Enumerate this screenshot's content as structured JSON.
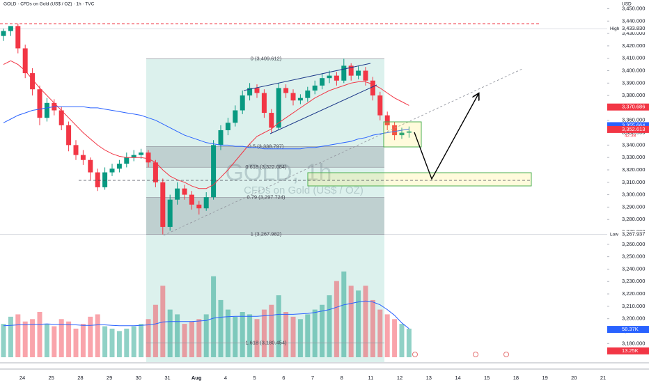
{
  "chart_data": {
    "type": "candlestick",
    "title": "GOLD · CFDs on Gold (US$ / OZ) · 1h · TVC",
    "watermark": "GOLD, 1h",
    "watermark_subtitle": "CFDs on Gold (US$ / OZ)",
    "currency": "USD",
    "up_color": "#089981",
    "down_color": "#f23645",
    "ylim": [
      3165,
      3457
    ],
    "yticks": [
      {
        "value": 3180,
        "label": "3,180.000"
      },
      {
        "value": 3190,
        "label": "3,190.000"
      },
      {
        "value": 3200,
        "label": "3,200.000"
      },
      {
        "value": 3210,
        "label": "3,210.000"
      },
      {
        "value": 3220,
        "label": "3,220.000"
      },
      {
        "value": 3230,
        "label": "3,230.000"
      },
      {
        "value": 3240,
        "label": "3,240.000"
      },
      {
        "value": 3250,
        "label": "3,250.000"
      },
      {
        "value": 3260,
        "label": "3,260.000"
      },
      {
        "value": 3270,
        "label": "3,270.000"
      },
      {
        "value": 3280,
        "label": "3,280.000"
      },
      {
        "value": 3290,
        "label": "3,290.000"
      },
      {
        "value": 3300,
        "label": "3,300.000"
      },
      {
        "value": 3310,
        "label": "3,310.000"
      },
      {
        "value": 3320,
        "label": "3,320.000"
      },
      {
        "value": 3330,
        "label": "3,330.000"
      },
      {
        "value": 3340,
        "label": "3,340.000"
      },
      {
        "value": 3350,
        "label": "3,350.000"
      },
      {
        "value": 3360,
        "label": "3,360.000"
      },
      {
        "value": 3370,
        "label": "3,370.000"
      },
      {
        "value": 3380,
        "label": "3,380.000"
      },
      {
        "value": 3390,
        "label": "3,390.000"
      },
      {
        "value": 3400,
        "label": "3,400.000"
      },
      {
        "value": 3410,
        "label": "3,410.000"
      },
      {
        "value": 3420,
        "label": "3,420.000"
      },
      {
        "value": 3430,
        "label": "3,430.000"
      },
      {
        "value": 3440,
        "label": "3,440.000"
      },
      {
        "value": 3450,
        "label": "3,450.000"
      }
    ],
    "date_labels": [
      "24",
      "25",
      "28",
      "29",
      "30",
      "31",
      "Aug",
      "4",
      "5",
      "6",
      "7",
      "8",
      "11",
      "12",
      "13",
      "14",
      "15",
      "18",
      "19",
      "20",
      "21"
    ],
    "open": [
      3428,
      3432,
      3436,
      3418,
      3398,
      3385,
      3362,
      3374,
      3368,
      3356,
      3340,
      3332,
      3328,
      3318,
      3306,
      3318,
      3321,
      3325,
      3330,
      3332,
      3334,
      3326,
      3310,
      3274,
      3296,
      3305,
      3300,
      3292,
      3289,
      3298,
      3340,
      3352,
      3358,
      3368,
      3380,
      3386,
      3382,
      3366,
      3354,
      3386,
      3382,
      3376,
      3378,
      3384,
      3388,
      3394,
      3396,
      3392,
      3404,
      3396,
      3400,
      3392,
      3380,
      3364,
      3356,
      3348,
      3350
    ],
    "high": [
      3434,
      3436,
      3438,
      3421,
      3402,
      3388,
      3378,
      3377,
      3371,
      3359,
      3344,
      3336,
      3330,
      3321,
      3322,
      3325,
      3328,
      3334,
      3336,
      3337,
      3336,
      3328,
      3313,
      3300,
      3310,
      3308,
      3303,
      3295,
      3302,
      3344,
      3356,
      3362,
      3372,
      3384,
      3390,
      3389,
      3385,
      3369,
      3390,
      3389,
      3385,
      3381,
      3387,
      3392,
      3398,
      3400,
      3399,
      3409.6,
      3406,
      3404,
      3403,
      3395,
      3383,
      3367,
      3359,
      3354,
      3355
    ],
    "low": [
      3424,
      3428,
      3414,
      3394,
      3380,
      3356,
      3359,
      3364,
      3352,
      3335,
      3328,
      3324,
      3312,
      3303,
      3304,
      3315,
      3318,
      3322,
      3327,
      3329,
      3322,
      3306,
      3268,
      3271,
      3292,
      3296,
      3288,
      3284,
      3287,
      3296,
      3336,
      3348,
      3355,
      3365,
      3376,
      3378,
      3362,
      3350,
      3352,
      3378,
      3372,
      3373,
      3375,
      3381,
      3385,
      3390,
      3388,
      3390,
      3392,
      3393,
      3388,
      3376,
      3360,
      3352,
      3344,
      3345,
      3346
    ],
    "close": [
      3432,
      3436,
      3418,
      3398,
      3385,
      3362,
      3374,
      3368,
      3356,
      3340,
      3332,
      3328,
      3318,
      3306,
      3318,
      3321,
      3325,
      3330,
      3332,
      3334,
      3326,
      3310,
      3274,
      3296,
      3305,
      3300,
      3292,
      3289,
      3298,
      3340,
      3352,
      3358,
      3368,
      3380,
      3386,
      3382,
      3366,
      3354,
      3386,
      3382,
      3376,
      3378,
      3384,
      3388,
      3394,
      3396,
      3392,
      3404,
      3396,
      3400,
      3392,
      3380,
      3364,
      3356,
      3348,
      3350,
      3351
    ],
    "moving_averages": [
      {
        "color": "#f23645",
        "values": [
          3405,
          3408,
          3405,
          3400,
          3393,
          3386,
          3380,
          3374,
          3368,
          3362,
          3356,
          3350,
          3345,
          3340,
          3336,
          3333,
          3331,
          3330,
          3330,
          3330,
          3329,
          3326,
          3320,
          3315,
          3312,
          3310,
          3307,
          3305,
          3305,
          3308,
          3314,
          3320,
          3327,
          3334,
          3341,
          3347,
          3350,
          3353,
          3358,
          3362,
          3366,
          3370,
          3374,
          3378,
          3381,
          3384,
          3386,
          3388,
          3390,
          3391,
          3391,
          3389,
          3386,
          3382,
          3378,
          3375,
          3372
        ]
      },
      {
        "color": "#2962ff",
        "values": [
          3358,
          3361,
          3364,
          3366,
          3368,
          3369,
          3370,
          3371,
          3371,
          3371,
          3371,
          3371,
          3370,
          3370,
          3369,
          3368,
          3367,
          3366,
          3365,
          3364,
          3362,
          3360,
          3357,
          3354,
          3351,
          3348,
          3346,
          3344,
          3342,
          3341,
          3340,
          3340,
          3339,
          3339,
          3338,
          3338,
          3337,
          3337,
          3337,
          3337,
          3337,
          3337,
          3338,
          3338,
          3339,
          3340,
          3341,
          3342,
          3343,
          3345,
          3346,
          3348,
          3349,
          3350,
          3351,
          3352,
          3353
        ]
      }
    ],
    "vlim": [
      0,
      190
    ],
    "volume": [
      70,
      85,
      90,
      75,
      80,
      95,
      70,
      65,
      80,
      75,
      60,
      70,
      85,
      90,
      65,
      60,
      55,
      60,
      65,
      70,
      80,
      110,
      150,
      100,
      90,
      70,
      75,
      80,
      90,
      170,
      120,
      100,
      85,
      95,
      90,
      80,
      100,
      110,
      130,
      95,
      85,
      80,
      90,
      100,
      110,
      130,
      160,
      180,
      150,
      140,
      150,
      120,
      100,
      90,
      80,
      70,
      60
    ],
    "volume_ma": {
      "color": "#2962ff",
      "values": [
        66,
        67,
        68,
        68,
        69,
        69,
        70,
        69,
        69,
        68,
        68,
        67,
        67,
        68,
        68,
        67,
        66,
        66,
        66,
        67,
        68,
        70,
        74,
        75,
        75,
        75,
        75,
        76,
        77,
        82,
        84,
        85,
        86,
        86,
        86,
        86,
        87,
        88,
        90,
        90,
        90,
        91,
        92,
        94,
        97,
        100,
        105,
        110,
        113,
        116,
        118,
        116,
        110,
        100,
        88,
        72,
        60
      ]
    },
    "volume_markers": [
      {
        "value": 58.37,
        "label": "58.37K",
        "color": "#2962ff"
      },
      {
        "value": 13.25,
        "label": "13.25K",
        "color": "#f23645"
      }
    ],
    "high_marker": {
      "name": "High",
      "value": 3433.83,
      "label": "3,433.830"
    },
    "low_marker": {
      "name": "Low",
      "value": 3267.937,
      "label": "3,267.937"
    },
    "price_markers": [
      {
        "value": 3370.686,
        "label": "3,370.686",
        "color": "#f23645"
      },
      {
        "value": 3355.664,
        "label": "3,355.664",
        "color": "#2962ff"
      },
      {
        "value": 3352.613,
        "label": "3,352.613",
        "color": "#f23645"
      }
    ],
    "countdown": "42:38",
    "fibonacci": {
      "levels": [
        {
          "value": 3409.612,
          "label": "0 (3,409.612)"
        },
        {
          "value": 3338.797,
          "label": "0.5 (3,338.797)"
        },
        {
          "value": 3322.084,
          "label": "0.618 (3,322.084)"
        },
        {
          "value": 3297.724,
          "label": "0.79 (3,297.724)"
        },
        {
          "value": 3267.982,
          "label": "1 (3,267.982)"
        },
        {
          "value": 3180.454,
          "label": "1.618 (3,180.454)"
        }
      ]
    }
  }
}
